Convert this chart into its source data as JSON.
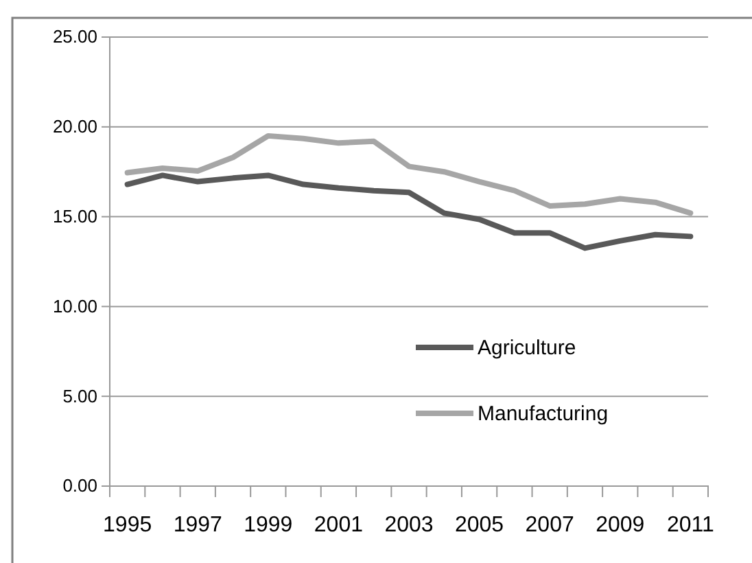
{
  "chart_data": {
    "type": "line",
    "categories": [
      "1995",
      null,
      "1997",
      null,
      "1999",
      null,
      "2001",
      null,
      "2003",
      null,
      "2005",
      null,
      "2007",
      null,
      "2009",
      null,
      "2011"
    ],
    "series": [
      {
        "name": "Agriculture",
        "color": "#595959",
        "values": [
          16.8,
          17.3,
          16.95,
          17.15,
          17.3,
          16.8,
          16.6,
          16.45,
          16.35,
          15.2,
          14.85,
          14.1,
          14.1,
          13.25,
          13.65,
          14.0,
          13.9
        ]
      },
      {
        "name": "Manufacturing",
        "color": "#a6a6a6",
        "values": [
          17.45,
          17.7,
          17.55,
          18.3,
          19.5,
          19.35,
          19.1,
          19.2,
          17.8,
          17.5,
          16.95,
          16.45,
          15.6,
          15.7,
          16.0,
          15.8,
          15.2
        ]
      }
    ],
    "ylim": [
      0,
      25
    ],
    "yticks": [
      {
        "value": 0,
        "label": "0.00"
      },
      {
        "value": 5,
        "label": "5.00"
      },
      {
        "value": 10,
        "label": "10.00"
      },
      {
        "value": 15,
        "label": "15.00"
      },
      {
        "value": 20,
        "label": "20.00"
      },
      {
        "value": 25,
        "label": "25.00"
      }
    ],
    "grid": "y",
    "legend": "right",
    "marker": "none",
    "line_style": "solid"
  }
}
